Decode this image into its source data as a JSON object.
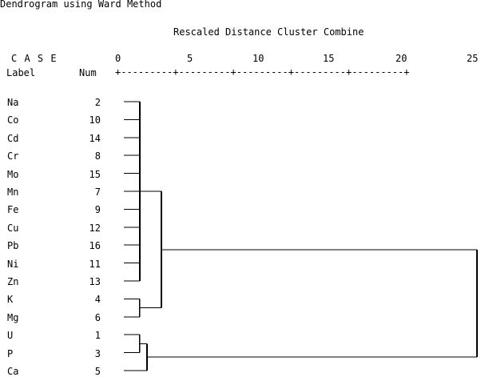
{
  "title": "Dendrogram using Ward Method",
  "subtitle": "Rescaled Distance Cluster Combine",
  "header": {
    "case": "C A S E",
    "label": "Label",
    "num": "Num"
  },
  "scale": {
    "ticks": [
      "0",
      "5",
      "10",
      "15",
      "20",
      "25"
    ],
    "axis_text": "+---------+---------+---------+---------+---------+"
  },
  "cases": [
    {
      "label": "Na",
      "num": "2"
    },
    {
      "label": "Co",
      "num": "10"
    },
    {
      "label": "Cd",
      "num": "14"
    },
    {
      "label": "Cr",
      "num": "8"
    },
    {
      "label": "Mo",
      "num": "15"
    },
    {
      "label": "Mn",
      "num": "7"
    },
    {
      "label": "Fe",
      "num": "9"
    },
    {
      "label": "Cu",
      "num": "12"
    },
    {
      "label": "Pb",
      "num": "16"
    },
    {
      "label": "Ni",
      "num": "11"
    },
    {
      "label": "Zn",
      "num": "13"
    },
    {
      "label": "K",
      "num": "4"
    },
    {
      "label": "Mg",
      "num": "6"
    },
    {
      "label": "U",
      "num": "1"
    },
    {
      "label": "P",
      "num": "3"
    },
    {
      "label": "Ca",
      "num": "5"
    }
  ],
  "merges": [
    {
      "members": [
        0,
        1,
        2,
        3,
        4,
        5,
        6,
        7,
        8,
        9,
        10
      ],
      "distance": 1
    },
    {
      "members": [
        11,
        12
      ],
      "distance": 1
    },
    {
      "members": [
        13,
        14
      ],
      "distance": 1
    },
    {
      "members": [
        13,
        14,
        15
      ],
      "distance": 2
    },
    {
      "members": [
        0,
        1,
        2,
        3,
        4,
        5,
        6,
        7,
        8,
        9,
        10,
        11,
        12
      ],
      "distance": 3
    },
    {
      "members": [
        0,
        1,
        2,
        3,
        4,
        5,
        6,
        7,
        8,
        9,
        10,
        11,
        12,
        13,
        14,
        15
      ],
      "distance": 25
    }
  ]
}
